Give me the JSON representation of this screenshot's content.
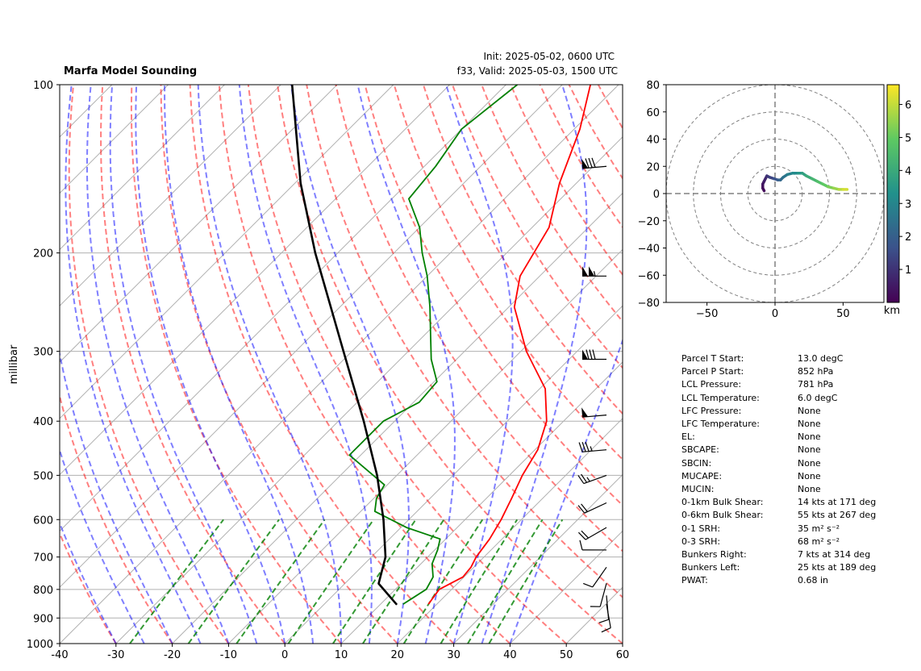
{
  "header": {
    "title": "Marfa Model Sounding",
    "init": "Init: 2025-05-02, 0600 UTC",
    "valid": "f33, Valid: 2025-05-03, 1500 UTC"
  },
  "chart_data": [
    {
      "type": "line",
      "subtype": "skew-t log-p",
      "ylabel": "millibar",
      "xlim": [
        -40,
        60
      ],
      "ylim": [
        1000,
        100
      ],
      "x_ticks": [
        -40,
        -30,
        -20,
        -10,
        0,
        10,
        20,
        30,
        40,
        50,
        60
      ],
      "p_ticks": [
        100,
        200,
        300,
        400,
        500,
        600,
        700,
        800,
        900,
        1000
      ],
      "series": [
        {
          "role": "temperature",
          "color": "#ff0000",
          "points": [
            [
              850,
              18.5
            ],
            [
              800,
              17.8
            ],
            [
              760,
              19.8
            ],
            [
              730,
              19.5
            ],
            [
              700,
              18.6
            ],
            [
              650,
              17.8
            ],
            [
              600,
              16.4
            ],
            [
              550,
              14.5
            ],
            [
              500,
              12.3
            ],
            [
              450,
              10.5
            ],
            [
              400,
              7.0
            ],
            [
              350,
              1.0
            ],
            [
              300,
              -9.0
            ],
            [
              250,
              -19.0
            ],
            [
              220,
              -23.5
            ],
            [
              180,
              -27.0
            ],
            [
              150,
              -33.0
            ],
            [
              120,
              -39.0
            ],
            [
              100,
              -45.0
            ]
          ]
        },
        {
          "role": "dewpoint",
          "color": "#008000",
          "points": [
            [
              850,
              14.0
            ],
            [
              800,
              15.5
            ],
            [
              760,
              14.5
            ],
            [
              720,
              12.0
            ],
            [
              680,
              10.5
            ],
            [
              650,
              9.0
            ],
            [
              620,
              1.0
            ],
            [
              580,
              -7.5
            ],
            [
              550,
              -9.5
            ],
            [
              520,
              -10.5
            ],
            [
              460,
              -22.0
            ],
            [
              400,
              -22.0
            ],
            [
              370,
              -19.0
            ],
            [
              340,
              -19.5
            ],
            [
              310,
              -24.5
            ],
            [
              280,
              -29.0
            ],
            [
              250,
              -34.0
            ],
            [
              220,
              -40.0
            ],
            [
              200,
              -45.0
            ],
            [
              180,
              -50.0
            ],
            [
              160,
              -57.0
            ],
            [
              140,
              -58.0
            ],
            [
              120,
              -60.0
            ],
            [
              100,
              -58.0
            ]
          ]
        },
        {
          "role": "parcel",
          "color": "#000000",
          "points": [
            [
              852,
              13.0
            ],
            [
              781,
              6.0
            ],
            [
              700,
              2.5
            ],
            [
              600,
              -4.5
            ],
            [
              500,
              -13.5
            ],
            [
              400,
              -25.5
            ],
            [
              300,
              -41.5
            ],
            [
              200,
              -64.0
            ],
            [
              150,
              -79.0
            ],
            [
              100,
              -98.0
            ]
          ]
        }
      ],
      "wind_barbs": [
        {
          "p": 850,
          "dir": 170,
          "spd_kt": 10
        },
        {
          "p": 820,
          "dir": 175,
          "spd_kt": 10
        },
        {
          "p": 780,
          "dir": 195,
          "spd_kt": 10
        },
        {
          "p": 730,
          "dir": 215,
          "spd_kt": 10
        },
        {
          "p": 680,
          "dir": 270,
          "spd_kt": 10
        },
        {
          "p": 620,
          "dir": 240,
          "spd_kt": 20
        },
        {
          "p": 560,
          "dir": 245,
          "spd_kt": 20
        },
        {
          "p": 500,
          "dir": 250,
          "spd_kt": 25
        },
        {
          "p": 450,
          "dir": 265,
          "spd_kt": 35
        },
        {
          "p": 390,
          "dir": 265,
          "spd_kt": 50
        },
        {
          "p": 310,
          "dir": 270,
          "spd_kt": 80
        },
        {
          "p": 220,
          "dir": 270,
          "spd_kt": 105
        },
        {
          "p": 140,
          "dir": 265,
          "spd_kt": 80
        }
      ]
    },
    {
      "type": "line",
      "subtype": "hodograph",
      "xlim": [
        -80,
        80
      ],
      "ylim": [
        -80,
        80
      ],
      "x_ticks": [
        -50,
        0,
        50
      ],
      "y_ticks": [
        80,
        60,
        40,
        20,
        0,
        -20,
        -40,
        -60,
        -80
      ],
      "colorbar": {
        "label": "km",
        "ticks": [
          1,
          2,
          3,
          4,
          5,
          6
        ],
        "range": [
          0,
          6.6
        ]
      },
      "points": [
        [
          -8,
          2
        ],
        [
          -9,
          4
        ],
        [
          -9,
          7
        ],
        [
          -8,
          9
        ],
        [
          -7,
          11
        ],
        [
          -6,
          13
        ],
        [
          -4,
          12
        ],
        [
          -1,
          11
        ],
        [
          2,
          10
        ],
        [
          4,
          10
        ],
        [
          6,
          12
        ],
        [
          9,
          14
        ],
        [
          13,
          15
        ],
        [
          17,
          15
        ],
        [
          20,
          15
        ],
        [
          23,
          13
        ],
        [
          27,
          11
        ],
        [
          31,
          9
        ],
        [
          35,
          7
        ],
        [
          39,
          5
        ],
        [
          43,
          4
        ],
        [
          47,
          3
        ],
        [
          50,
          3
        ],
        [
          53,
          3
        ]
      ],
      "heights_km": [
        0.1,
        0.2,
        0.35,
        0.5,
        0.7,
        0.9,
        1.2,
        1.5,
        1.8,
        2.1,
        2.4,
        2.7,
        3.0,
        3.3,
        3.6,
        3.9,
        4.2,
        4.5,
        4.8,
        5.1,
        5.4,
        5.7,
        6.0,
        6.3
      ]
    }
  ],
  "params": [
    {
      "label": "Parcel T Start:",
      "value": "13.0 degC"
    },
    {
      "label": "Parcel P Start:",
      "value": "852 hPa"
    },
    {
      "label": "LCL Pressure:",
      "value": "781 hPa"
    },
    {
      "label": "LCL Temperature:",
      "value": "6.0 degC"
    },
    {
      "label": "LFC Pressure:",
      "value": "None"
    },
    {
      "label": "LFC Temperature:",
      "value": "None"
    },
    {
      "label": "EL:",
      "value": "None"
    },
    {
      "label": "SBCAPE:",
      "value": "None"
    },
    {
      "label": "SBCIN:",
      "value": "None"
    },
    {
      "label": "MUCAPE:",
      "value": "None"
    },
    {
      "label": "MUCIN:",
      "value": "None"
    },
    {
      "label": "0-1km Bulk Shear:",
      "value": "14 kts at 171 deg"
    },
    {
      "label": "0-6km Bulk Shear:",
      "value": "55 kts at 267 deg"
    },
    {
      "label": "0-1 SRH:",
      "value": "35 m² s⁻²"
    },
    {
      "label": "0-3 SRH:",
      "value": "68 m² s⁻²"
    },
    {
      "label": "Bunkers Right:",
      "value": "7 kts at 314 deg"
    },
    {
      "label": "Bunkers Left:",
      "value": "25 kts at 189 deg"
    },
    {
      "label": "PWAT:",
      "value": "0.68 in"
    }
  ]
}
